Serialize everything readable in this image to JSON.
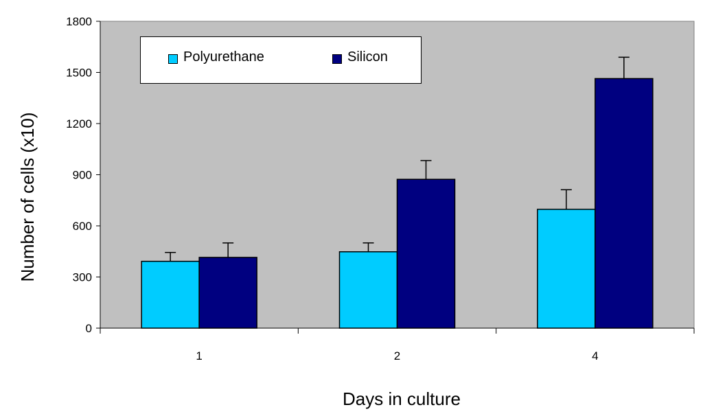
{
  "chart_data": {
    "type": "bar",
    "title": "",
    "xlabel": "Days in culture",
    "ylabel": "Number of cells (x10)",
    "categories": [
      "1",
      "2",
      "4"
    ],
    "series": [
      {
        "name": "Polyurethane",
        "color": "#00ccff",
        "values": [
          392,
          448,
          697
        ],
        "errors": [
          52,
          52,
          115
        ]
      },
      {
        "name": "Silicon",
        "color": "#000080",
        "values": [
          415,
          873,
          1464
        ],
        "errors": [
          85,
          110,
          125
        ]
      }
    ],
    "ylim": [
      0,
      1800
    ],
    "yticks": [
      "0",
      "300",
      "600",
      "900",
      "1200",
      "1500",
      "1800"
    ],
    "plot_background": "#c0c0c0",
    "grid": false,
    "legend_position": "top-left"
  }
}
